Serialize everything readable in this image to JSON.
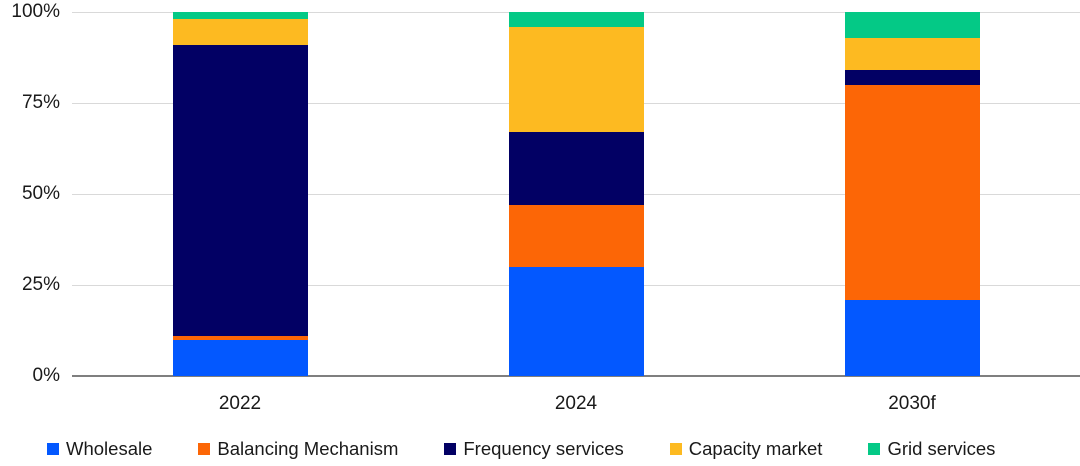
{
  "chart_data": {
    "type": "bar",
    "stacked": true,
    "unit": "percent",
    "title": "",
    "xlabel": "",
    "ylabel": "",
    "ylim": [
      0,
      100
    ],
    "grid": true,
    "legend_position": "bottom",
    "categories": [
      "2022",
      "2024",
      "2030f"
    ],
    "y_ticks": [
      {
        "label": "0%",
        "value": 0
      },
      {
        "label": "25%",
        "value": 25
      },
      {
        "label": "50%",
        "value": 50
      },
      {
        "label": "75%",
        "value": 75
      },
      {
        "label": "100%",
        "value": 100
      }
    ],
    "series": [
      {
        "name": "Wholesale",
        "color": "#0358FF",
        "values": [
          10,
          30,
          21
        ]
      },
      {
        "name": "Balancing Mechanism",
        "color": "#FC6606",
        "values": [
          1,
          17,
          59
        ]
      },
      {
        "name": "Frequency services",
        "color": "#020064",
        "values": [
          80,
          20,
          4
        ]
      },
      {
        "name": "Capacity market",
        "color": "#FDBA21",
        "values": [
          7,
          29,
          9
        ]
      },
      {
        "name": "Grid services",
        "color": "#04C986",
        "values": [
          2,
          4,
          7
        ]
      }
    ]
  },
  "colors": {
    "background": "#FFFFFF",
    "gridline": "#D9D9D9",
    "axis_line": "#7F7F7F",
    "text": "#1A1A1A"
  }
}
